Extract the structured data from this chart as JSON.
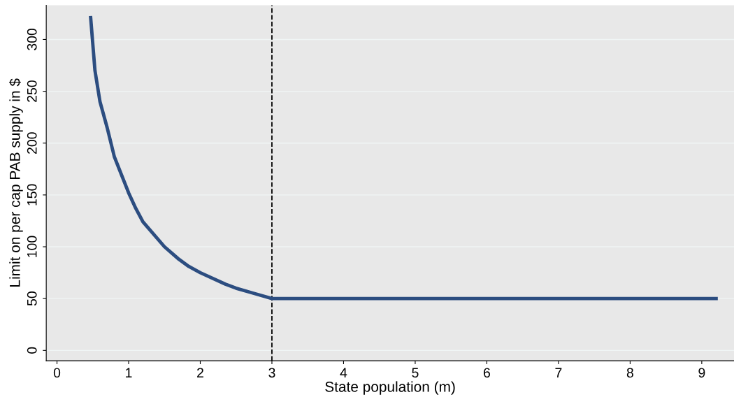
{
  "chart_data": {
    "type": "line",
    "xlabel": "State population (m)",
    "ylabel": "Limit on per cap PAB supply in $",
    "series": [
      {
        "color": "#2c4d80",
        "x": [
          0.47,
          0.53,
          0.6,
          0.7,
          0.8,
          1.0,
          1.1,
          1.2,
          1.5,
          1.7,
          1.84,
          2.0,
          2.35,
          2.5,
          2.75,
          3.0,
          9.2
        ],
        "values": [
          321,
          270,
          240,
          215,
          187,
          152,
          137,
          124,
          100,
          88,
          81,
          75,
          64,
          60,
          55,
          50,
          50
        ]
      }
    ],
    "xlim": [
      -0.15,
      9.45
    ],
    "ylim": [
      -10,
      333
    ],
    "xticks": [
      0,
      1,
      2,
      3,
      4,
      5,
      6,
      7,
      8,
      9
    ],
    "yticks": [
      0,
      50,
      100,
      150,
      200,
      250,
      300
    ],
    "ref_lines": [
      {
        "axis": "x",
        "value": 3,
        "color": "#000000",
        "line_style": "dashed"
      }
    ],
    "grid": "y",
    "marker": "none",
    "line_style": "solid"
  }
}
